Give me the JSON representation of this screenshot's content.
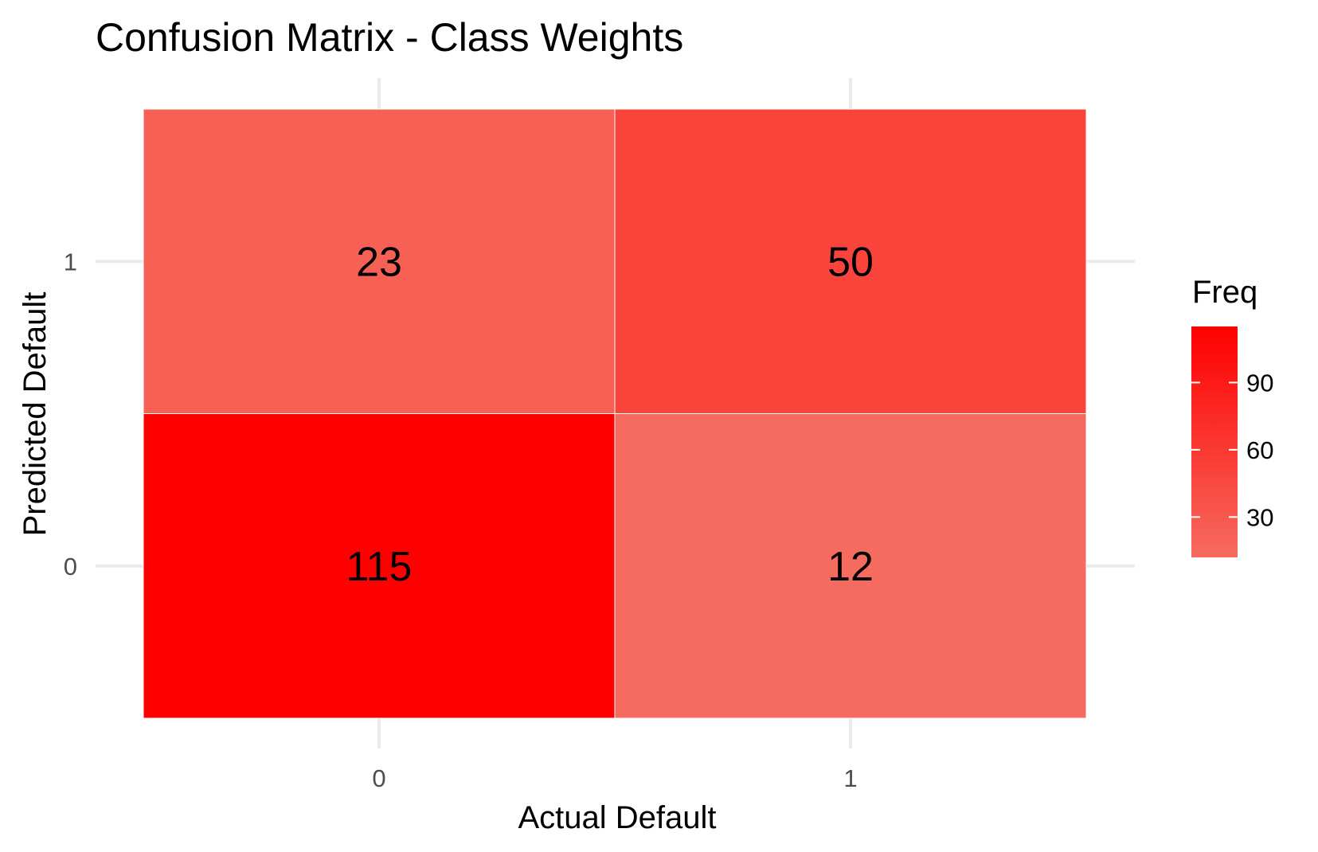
{
  "chart_data": {
    "type": "heatmap",
    "title": "Confusion Matrix - Class Weights",
    "xlabel": "Actual Default",
    "ylabel": "Predicted Default",
    "x_categories": [
      "0",
      "1"
    ],
    "y_categories": [
      "0",
      "1"
    ],
    "cells": [
      {
        "actual": "0",
        "predicted": "1",
        "value": 23
      },
      {
        "actual": "1",
        "predicted": "1",
        "value": 50
      },
      {
        "actual": "0",
        "predicted": "0",
        "value": 115
      },
      {
        "actual": "1",
        "predicted": "0",
        "value": 12
      }
    ],
    "grid": true,
    "legend": {
      "title": "Freq",
      "position": "right",
      "ticks": [
        30,
        60,
        90
      ],
      "range": [
        12,
        115
      ],
      "color_low": "#f66b5f",
      "color_high": "#ff0000"
    }
  }
}
